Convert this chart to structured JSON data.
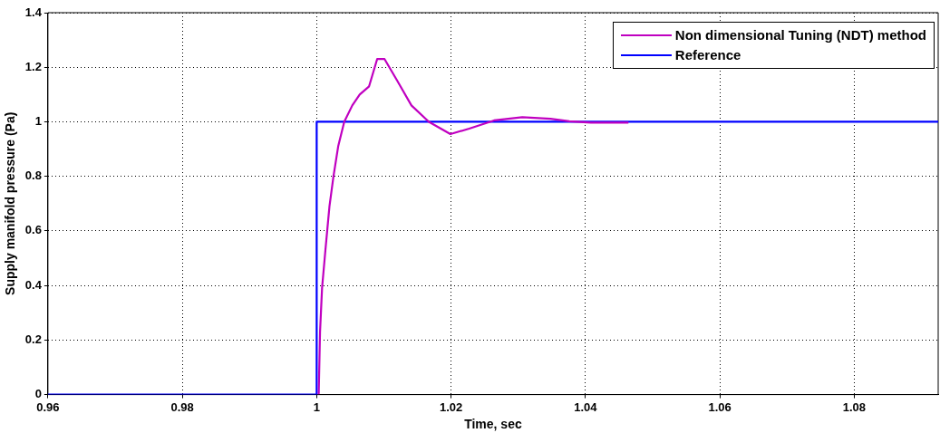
{
  "chart_data": {
    "type": "line",
    "xlabel": "Time, sec",
    "ylabel": "Supply manifold pressure (Pa)",
    "xlim": [
      0.96,
      1.0925
    ],
    "xticks": [
      0.96,
      0.98,
      1,
      1.02,
      1.04,
      1.06,
      1.08
    ],
    "ylim": [
      0,
      1.4
    ],
    "yticks": [
      0,
      0.2,
      0.4,
      0.6,
      0.8,
      1,
      1.2,
      1.4
    ],
    "grid": true,
    "legend": "top right",
    "marker": "none",
    "line_style": "solid",
    "series": [
      {
        "name": "Non dimensional Tuning (NDT) method",
        "color": "#c000c0",
        "x": [
          1.0003,
          1.0005,
          1.0008,
          1.0013,
          1.0019,
          1.0025,
          1.0032,
          1.0041,
          1.0053,
          1.0064,
          1.0078,
          1.009,
          1.0101,
          1.012,
          1.0141,
          1.0167,
          1.0199,
          1.0227,
          1.0264,
          1.0306,
          1.0348,
          1.0376,
          1.0408,
          1.0464
        ],
        "values": [
          0,
          0.23,
          0.39,
          0.53,
          0.69,
          0.8,
          0.91,
          1,
          1.06,
          1.1,
          1.13,
          1.23,
          1.23,
          1.15,
          1.06,
          1,
          0.955,
          0.975,
          1.005,
          1.017,
          1.011,
          1.002,
          0.997,
          0.997
        ]
      },
      {
        "name": "Reference",
        "color": "#0000ff",
        "x": [
          0.96,
          1,
          1,
          1.0925
        ],
        "values": [
          0,
          0,
          1,
          1
        ]
      }
    ]
  }
}
